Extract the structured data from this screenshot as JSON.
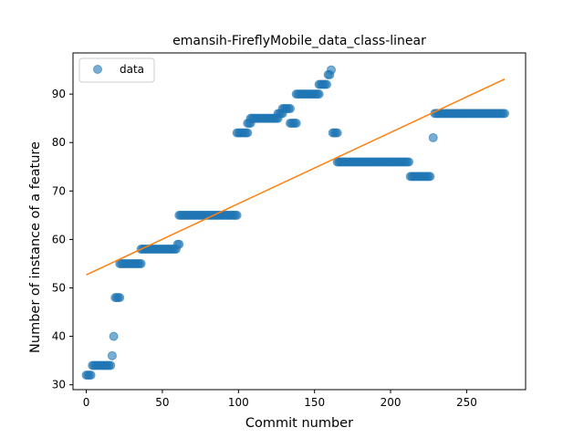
{
  "chart_data": {
    "type": "scatter",
    "title": "emansih-FireflyMobile_data_class-linear",
    "xlabel": "Commit number",
    "ylabel": "Number of instance of a feature",
    "xlim": [
      -8.75,
      288.75
    ],
    "ylim": [
      29.0,
      98.5
    ],
    "xticks": [
      0,
      50,
      100,
      150,
      200,
      250
    ],
    "yticks": [
      30,
      40,
      50,
      60,
      70,
      80,
      90
    ],
    "legend": {
      "position": "top-left",
      "entries": [
        "data"
      ]
    },
    "colors": {
      "scatter": "#1f77b4",
      "fit_line": "#ff7f0e"
    },
    "series": [
      {
        "name": "data",
        "kind": "scatter",
        "segments": [
          {
            "x_start": 0,
            "x_end": 3,
            "y": 32
          },
          {
            "x_start": 4,
            "x_end": 16,
            "y": 34
          },
          {
            "x_start": 17,
            "x_end": 17,
            "y": 36
          },
          {
            "x_start": 18,
            "x_end": 18,
            "y": 40
          },
          {
            "x_start": 19,
            "x_end": 22,
            "y": 48
          },
          {
            "x_start": 22,
            "x_end": 36,
            "y": 55
          },
          {
            "x_start": 36,
            "x_end": 59,
            "y": 58
          },
          {
            "x_start": 60,
            "x_end": 61,
            "y": 59
          },
          {
            "x_start": 61,
            "x_end": 99,
            "y": 65
          },
          {
            "x_start": 99,
            "x_end": 106,
            "y": 82
          },
          {
            "x_start": 106,
            "x_end": 108,
            "y": 84
          },
          {
            "x_start": 108,
            "x_end": 126,
            "y": 85
          },
          {
            "x_start": 126,
            "x_end": 129,
            "y": 86
          },
          {
            "x_start": 129,
            "x_end": 134,
            "y": 87
          },
          {
            "x_start": 134,
            "x_end": 138,
            "y": 84
          },
          {
            "x_start": 138,
            "x_end": 153,
            "y": 90
          },
          {
            "x_start": 153,
            "x_end": 158,
            "y": 92
          },
          {
            "x_start": 159,
            "x_end": 160,
            "y": 94
          },
          {
            "x_start": 161,
            "x_end": 161,
            "y": 95
          },
          {
            "x_start": 162,
            "x_end": 165,
            "y": 82
          },
          {
            "x_start": 165,
            "x_end": 212,
            "y": 76
          },
          {
            "x_start": 213,
            "x_end": 226,
            "y": 73
          },
          {
            "x_start": 228,
            "x_end": 228,
            "y": 81
          },
          {
            "x_start": 229,
            "x_end": 275,
            "y": 86
          }
        ]
      },
      {
        "name": "fit",
        "kind": "line",
        "x": [
          0,
          275
        ],
        "y": [
          52.7,
          93.1
        ]
      }
    ]
  }
}
